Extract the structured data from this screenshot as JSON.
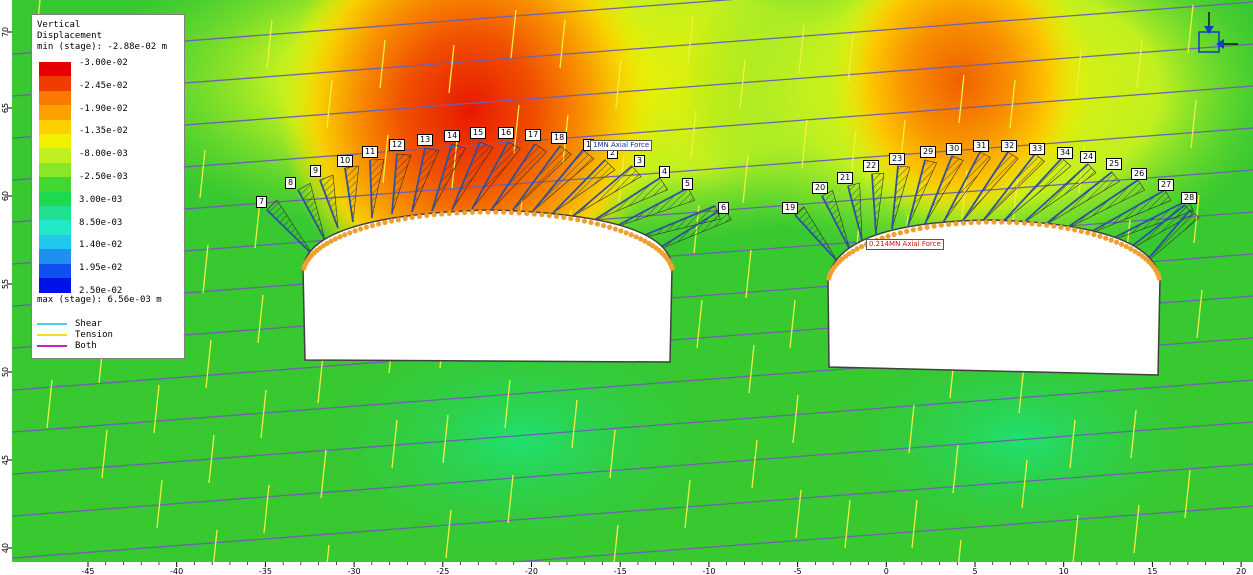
{
  "legend": {
    "title_line1": "Vertical",
    "title_line2": "Displacement",
    "min_label": "min (stage): -2.88e-02 m",
    "max_label": "max (stage): 6.56e-03 m",
    "values": [
      "-3.00e-02",
      "-2.45e-02",
      "-1.90e-02",
      "-1.35e-02",
      "-8.00e-03",
      "-2.50e-03",
      "3.00e-03",
      "8.50e-03",
      "1.40e-02",
      "1.95e-02",
      "2.50e-02"
    ],
    "colors": [
      "#e80000",
      "#f03c00",
      "#f87800",
      "#fca000",
      "#ffd000",
      "#f0f000",
      "#c0f020",
      "#88e828",
      "#40d830",
      "#20d850",
      "#20e090",
      "#20e8c8",
      "#20c8f0",
      "#2090f0",
      "#1050f0",
      "#0010e8"
    ],
    "keys": [
      {
        "label": "Shear",
        "color": "#40d0f0"
      },
      {
        "label": "Tension",
        "color": "#f0e020"
      },
      {
        "label": "Both",
        "color": "#c020c0"
      }
    ]
  },
  "x_ticks": [
    "-45",
    "-40",
    "-35",
    "-30",
    "-25",
    "-20",
    "-15",
    "-10",
    "-5",
    "0",
    "5",
    "10",
    "15",
    "20"
  ],
  "y_ticks": [
    "40",
    "45",
    "50",
    "55",
    "60",
    "65",
    "70"
  ],
  "bolt_labels": [
    "1",
    "2",
    "3",
    "4",
    "5",
    "6",
    "7",
    "8",
    "9",
    "10",
    "11",
    "12",
    "13",
    "14",
    "15",
    "16",
    "17",
    "18",
    "19",
    "20",
    "21",
    "22",
    "23",
    "24",
    "25",
    "26",
    "27",
    "28",
    "29",
    "30",
    "31",
    "32",
    "33",
    "34"
  ],
  "force_labels": {
    "left": "1MN Axial Force",
    "right": "0.214MN Axial Force"
  },
  "colors": {
    "joint_purple": "#7060b0",
    "joint_yellow": "#f0f040",
    "support_orange": "#f0a030",
    "bolt_blue": "#3050a0"
  }
}
